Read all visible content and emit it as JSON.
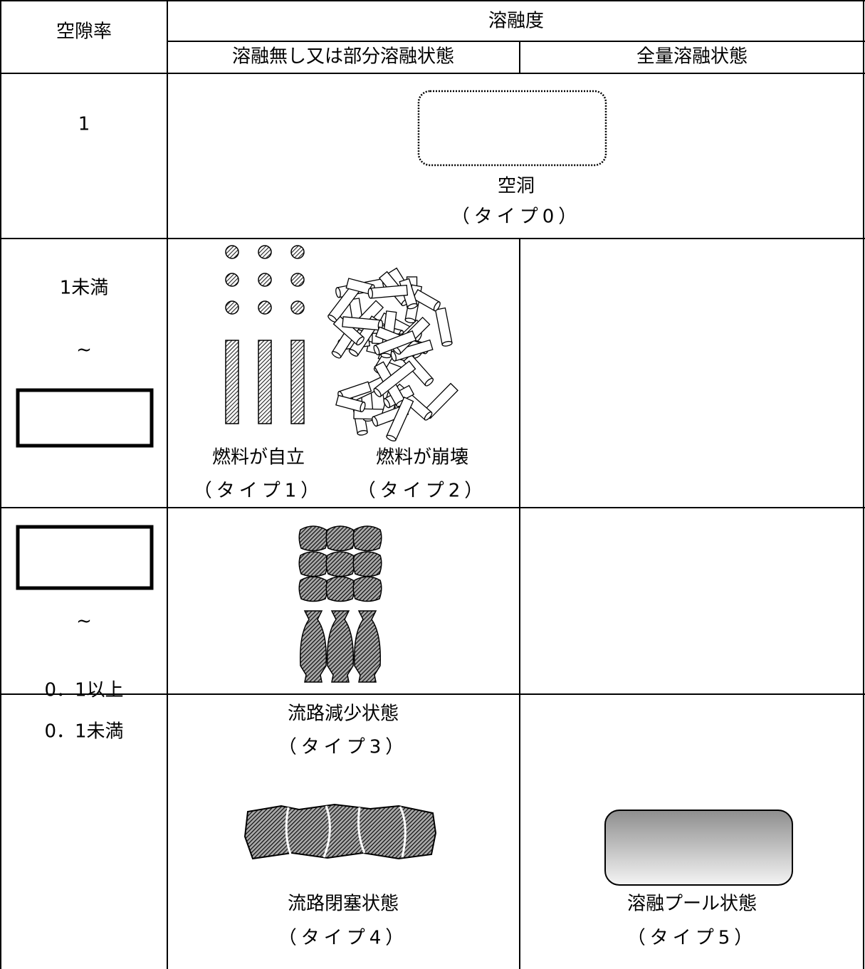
{
  "table": {
    "header": {
      "porosity": "空隙率",
      "melting": "溶融度",
      "partial": "溶融無し又は部分溶融状態",
      "full": "全量溶融状態"
    },
    "rows": [
      {
        "porosity": [
          "1"
        ],
        "cells": [
          {
            "label": "空洞",
            "type": "（タイプ0）"
          }
        ]
      },
      {
        "porosity": [
          "1未満",
          "~"
        ],
        "cells": [
          {
            "label": "燃料が自立",
            "type": "（タイプ1）"
          },
          {
            "label": "燃料が崩壊",
            "type": "（タイプ2）"
          }
        ]
      },
      {
        "porosity": [
          "~",
          "0．1以上"
        ],
        "cells": [
          {
            "label": "流路減少状態",
            "type": "（タイプ3）"
          }
        ]
      },
      {
        "porosity": [
          "0．1未満"
        ],
        "cells": [
          {
            "label": "流路閉塞状態",
            "type": "（タイプ4）"
          },
          {
            "label": "溶融プール状態",
            "type": "（タイプ5）"
          }
        ]
      }
    ]
  }
}
